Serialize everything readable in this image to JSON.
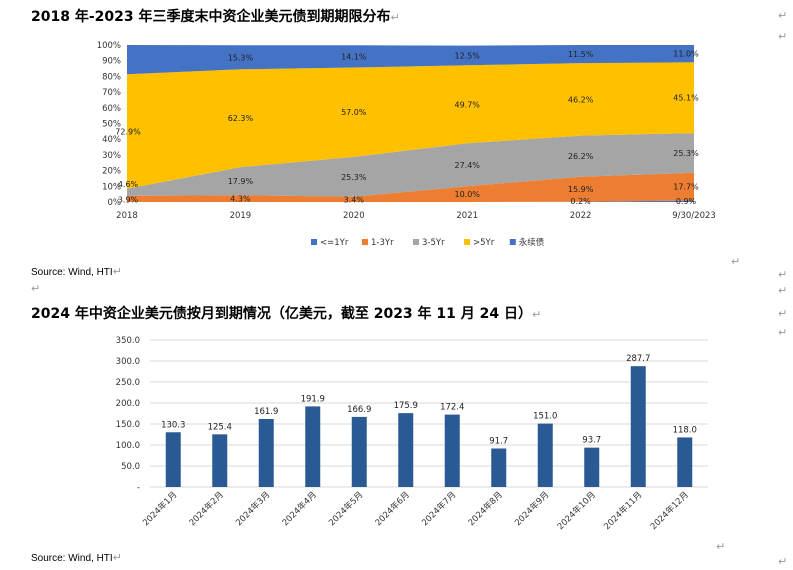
{
  "headings": {
    "chart1_title": "2018 年-2023 年三季度末中资企业美元债到期期限分布",
    "chart2_title": "2024 年中资企业美元债按月到期情况（亿美元，截至 2023 年 11 月 24 日）",
    "return_mark": "↵"
  },
  "sources": {
    "source1": "Source: Wind, HTI",
    "source2": "Source: Wind, HTI"
  },
  "chart_data": [
    {
      "type": "area",
      "stacked": "percent",
      "title": "2018 年-2023 年三季度末中资企业美元债到期期限分布",
      "x": [
        "2018",
        "2019",
        "2020",
        "2021",
        "2022",
        "9/30/2023"
      ],
      "ylim": [
        0,
        100
      ],
      "yticks": [
        "0%",
        "10%",
        "20%",
        "30%",
        "40%",
        "50%",
        "60%",
        "70%",
        "80%",
        "90%",
        "100%"
      ],
      "legend_position": "bottom",
      "series": [
        {
          "name": "<=1Yr",
          "color": "#4472C4",
          "values": [
            0,
            0,
            0,
            0,
            0.2,
            0.9
          ],
          "labels": [
            "",
            "",
            "",
            "",
            "0.2%",
            "0.9%"
          ]
        },
        {
          "name": "1-3Yr",
          "color": "#ED7D31",
          "values": [
            3.9,
            4.3,
            3.4,
            10.0,
            15.9,
            17.7
          ],
          "labels": [
            "3.9%",
            "4.3%",
            "3.4%",
            "10.0%",
            "15.9%",
            "17.7%"
          ]
        },
        {
          "name": "3-5Yr",
          "color": "#A5A5A5",
          "values": [
            4.6,
            17.9,
            25.3,
            27.4,
            26.2,
            25.3
          ],
          "labels": [
            "4.6%",
            "17.9%",
            "25.3%",
            "27.4%",
            "26.2%",
            "25.3%"
          ]
        },
        {
          "name": ">5Yr",
          "color": "#FFC000",
          "values": [
            72.9,
            62.3,
            57.0,
            49.7,
            46.2,
            45.1
          ],
          "labels": [
            "72.9%",
            "62.3%",
            "57.0%",
            "49.7%",
            "46.2%",
            "45.1%"
          ]
        },
        {
          "name": "永续债",
          "color": "#4472C4",
          "values": [
            18.6,
            15.3,
            14.1,
            12.5,
            11.5,
            11.0
          ],
          "labels": [
            "",
            "15.3%",
            "14.1%",
            "12.5%",
            "11.5%",
            "11.0%"
          ]
        }
      ]
    },
    {
      "type": "bar",
      "title": "2024 年中资企业美元债按月到期情况（亿美元，截至 2023 年 11 月 24 日）",
      "categories": [
        "2024年1月",
        "2024年2月",
        "2024年3月",
        "2024年4月",
        "2024年5月",
        "2024年6月",
        "2024年7月",
        "2024年8月",
        "2024年9月",
        "2024年10月",
        "2024年11月",
        "2024年12月"
      ],
      "values": [
        130.3,
        125.4,
        161.9,
        191.9,
        166.9,
        175.9,
        172.4,
        91.7,
        151.0,
        93.7,
        287.7,
        118.0
      ],
      "labels": [
        "130.3",
        "125.4",
        "161.9",
        "191.9",
        "166.9",
        "175.9",
        "172.4",
        "91.7",
        "151.0",
        "93.7",
        "287.7",
        "118.0"
      ],
      "ylim": [
        0,
        350
      ],
      "yticks": [
        "-",
        "50.0",
        "100.0",
        "150.0",
        "200.0",
        "250.0",
        "300.0",
        "350.0"
      ],
      "color": "#2A5A94",
      "grid": true
    }
  ]
}
